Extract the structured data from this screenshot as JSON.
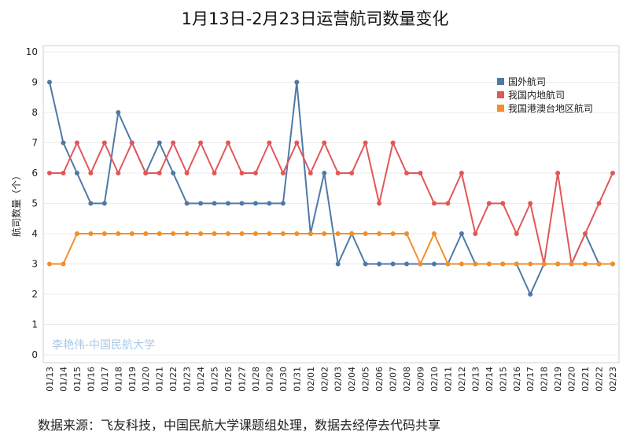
{
  "chart_data": {
    "type": "line",
    "title": "1月13日-2月23日运营航司数量变化",
    "ylabel": "航司数量（个）",
    "xlabel": "",
    "ylim": [
      0,
      10
    ],
    "yticks": [
      0,
      1,
      2,
      3,
      4,
      5,
      6,
      7,
      8,
      9,
      10
    ],
    "grid": true,
    "legend": "top-right",
    "categories": [
      "01/13",
      "01/14",
      "01/15",
      "01/16",
      "01/17",
      "01/18",
      "01/19",
      "01/20",
      "01/21",
      "01/22",
      "01/23",
      "01/24",
      "01/25",
      "01/26",
      "01/27",
      "01/28",
      "01/29",
      "01/30",
      "01/31",
      "02/01",
      "02/02",
      "02/03",
      "02/04",
      "02/05",
      "02/06",
      "02/07",
      "02/08",
      "02/09",
      "02/10",
      "02/11",
      "02/12",
      "02/13",
      "02/14",
      "02/15",
      "02/16",
      "02/17",
      "02/18",
      "02/19",
      "02/20",
      "02/21",
      "02/22",
      "02/23"
    ],
    "series": [
      {
        "name": "国外航司",
        "color": "#4e79a7",
        "values": [
          9,
          7,
          6,
          5,
          5,
          8,
          7,
          6,
          7,
          6,
          5,
          5,
          5,
          5,
          5,
          5,
          5,
          5,
          9,
          4,
          6,
          3,
          4,
          3,
          3,
          3,
          3,
          3,
          3,
          3,
          4,
          3,
          3,
          3,
          3,
          2,
          3,
          3,
          3,
          4,
          3,
          3
        ]
      },
      {
        "name": "我国内地航司",
        "color": "#e15759",
        "values": [
          6,
          6,
          7,
          6,
          7,
          6,
          7,
          6,
          6,
          7,
          6,
          7,
          6,
          7,
          6,
          6,
          7,
          6,
          7,
          6,
          7,
          6,
          6,
          7,
          5,
          7,
          6,
          6,
          5,
          5,
          6,
          4,
          5,
          5,
          4,
          5,
          3,
          6,
          3,
          4,
          5,
          6
        ]
      },
      {
        "name": "我国港澳台地区航司",
        "color": "#f28e2b",
        "values": [
          3,
          3,
          4,
          4,
          4,
          4,
          4,
          4,
          4,
          4,
          4,
          4,
          4,
          4,
          4,
          4,
          4,
          4,
          4,
          4,
          4,
          4,
          4,
          4,
          4,
          4,
          4,
          3,
          4,
          3,
          3,
          3,
          3,
          3,
          3,
          3,
          3,
          3,
          3,
          3,
          3,
          3
        ]
      }
    ],
    "watermark": "李艳伟-中国民航大学"
  },
  "footer": "数据来源：飞友科技，中国民航大学课题组处理，数据去经停去代码共享"
}
